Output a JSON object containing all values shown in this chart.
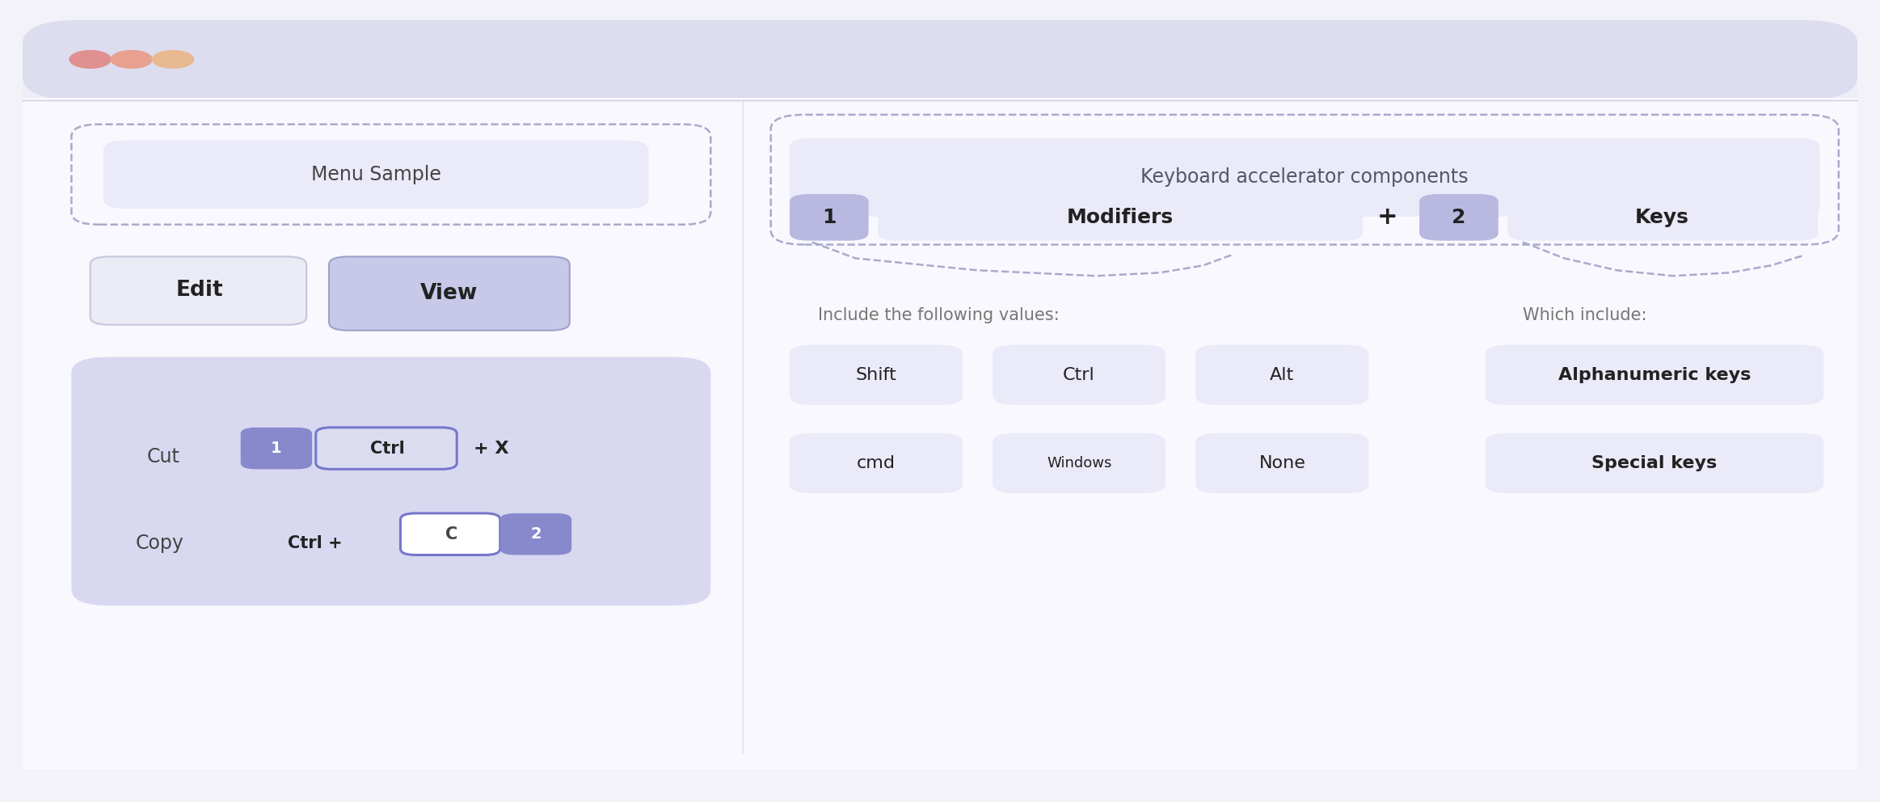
{
  "fig_w": 23.26,
  "fig_h": 9.92,
  "outer_bg": "#f2f2f8",
  "titlebar_bg": "#ddddf0",
  "content_bg": "#ffffff",
  "light_purple_bg": "#eaeaf8",
  "medium_purple": "#c0c0e0",
  "dark_purple": "#8888cc",
  "darker_purple": "#6666bb",
  "key_outline_purple": "#7777cc",
  "dashed_color": "#aaaacc",
  "text_dark": "#222222",
  "text_mid": "#444444",
  "text_light": "#777777",
  "dot_colors": [
    "#e09090",
    "#e8a090",
    "#e8b890"
  ],
  "menu_sample_label": "Menu Sample",
  "keyboard_title": "Keyboard accelerator components",
  "modifier_label": "Modifiers",
  "keys_label": "Keys",
  "include_text": "Include the following values:",
  "which_include_text": "Which include:",
  "modifiers_row1": [
    "Shift",
    "Ctrl",
    "Alt"
  ],
  "modifiers_row2": [
    "cmd",
    "Windows",
    "None"
  ],
  "key_types": [
    "Alphanumeric keys",
    "Special keys"
  ],
  "cut_label": "Cut",
  "copy_label": "Copy"
}
